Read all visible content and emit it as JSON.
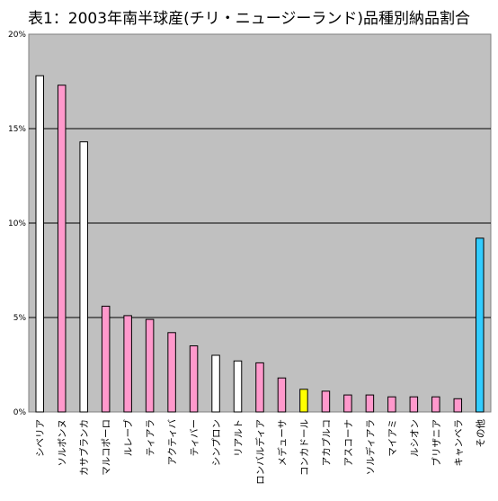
{
  "chart_data": {
    "type": "bar",
    "title": "表1：2003年南半球産(チリ・ニュージーランド)品種別納品割合",
    "xlabel": "",
    "ylabel": "",
    "ylim": [
      0,
      20
    ],
    "y_ticks": [
      "0%",
      "5%",
      "10%",
      "15%",
      "20%"
    ],
    "grid": true,
    "legend": "none",
    "plot_background": "#C0C0C0",
    "categories": [
      "シベリア",
      "ソルボンヌ",
      "カサブランカ",
      "マルコポーロ",
      "ルレーブ",
      "ティアラ",
      "アクティバ",
      "ティバー",
      "シンプロン",
      "リアルト",
      "ロンバルディア",
      "メデューサ",
      "コンカドール",
      "アカプルコ",
      "アスコーナ",
      "ソルディアラ",
      "マイアミ",
      "ルシオン",
      "ブリザニア",
      "キャンベラ",
      "その他"
    ],
    "values": [
      17.8,
      17.3,
      14.3,
      5.6,
      5.1,
      4.9,
      4.2,
      3.5,
      3.0,
      2.7,
      2.6,
      1.8,
      1.2,
      1.1,
      0.9,
      0.9,
      0.8,
      0.8,
      0.8,
      0.7,
      9.2
    ],
    "bar_colors": [
      "#FFFFFF",
      "#FF99CC",
      "#FFFFFF",
      "#FF99CC",
      "#FF99CC",
      "#FF99CC",
      "#FF99CC",
      "#FF99CC",
      "#FFFFFF",
      "#FFFFFF",
      "#FF99CC",
      "#FF99CC",
      "#FFFF00",
      "#FF99CC",
      "#FF99CC",
      "#FF99CC",
      "#FF99CC",
      "#FF99CC",
      "#FF99CC",
      "#FF99CC",
      "#33CCFF"
    ]
  }
}
